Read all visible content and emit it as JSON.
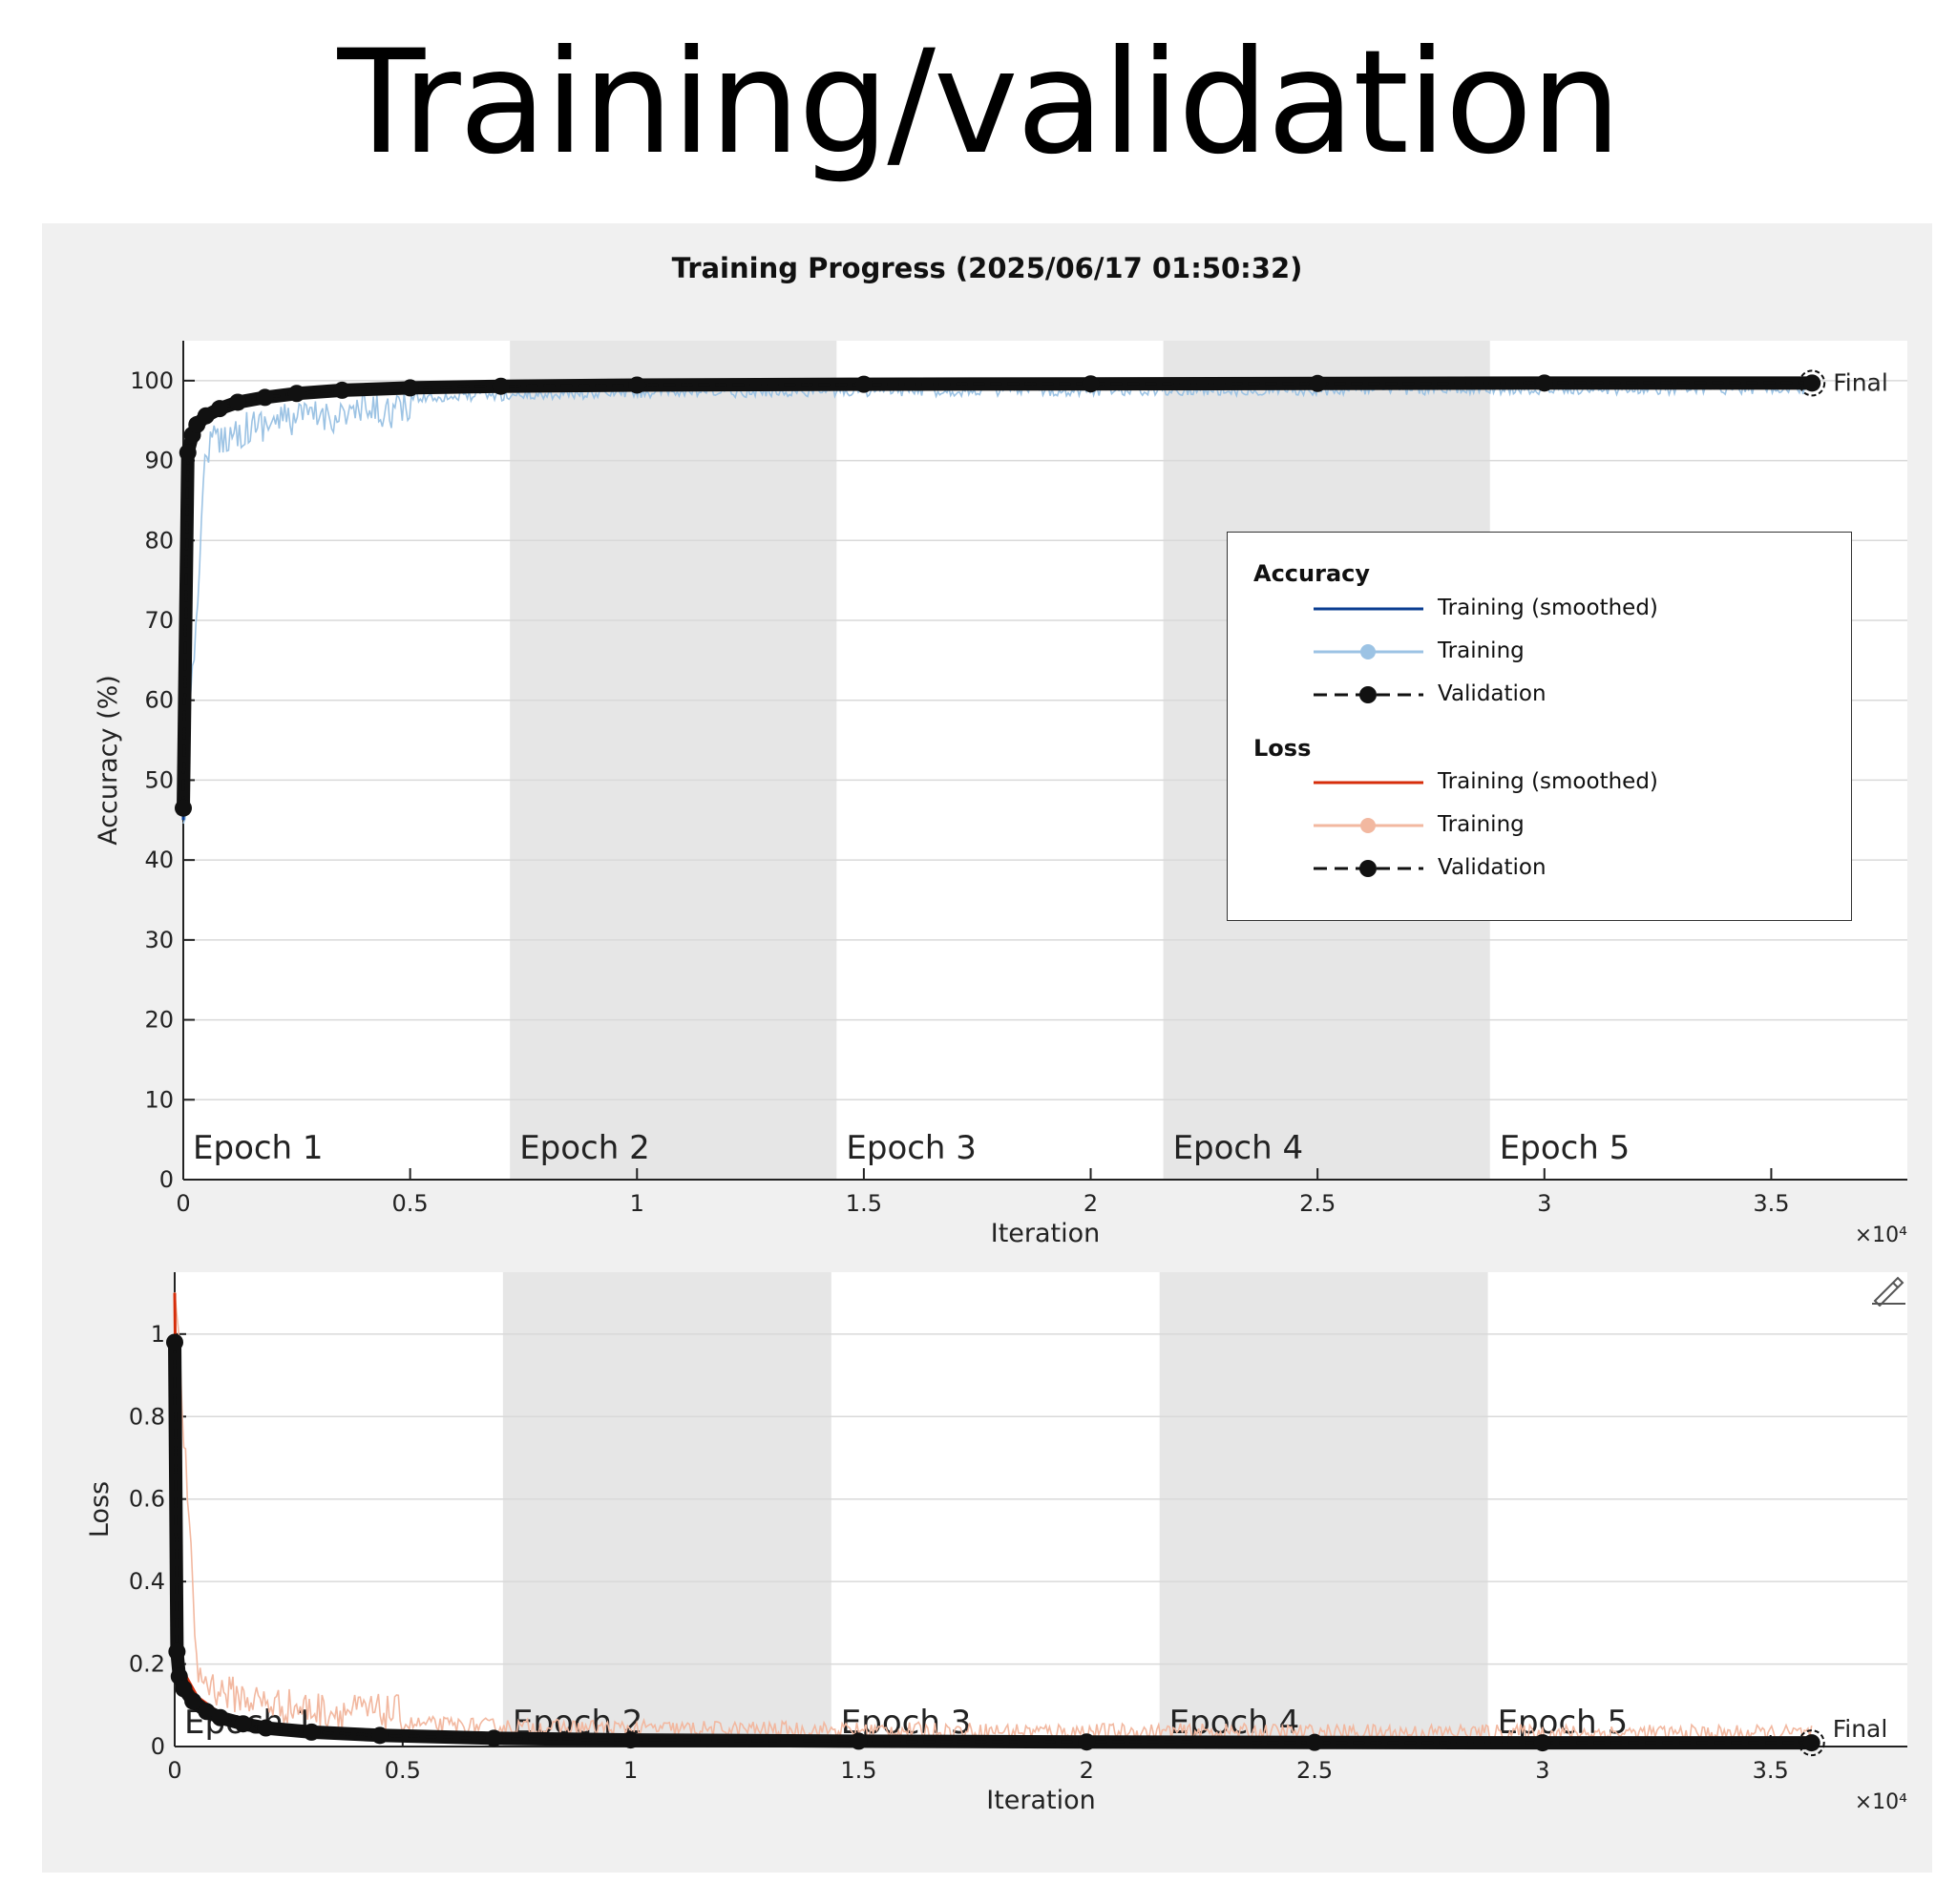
{
  "slide_title": "Training/validation",
  "colors": {
    "accuracy_smoothed": "#0a3d91",
    "accuracy_raw": "#9cc3e4",
    "loss_smoothed": "#d62d0a",
    "loss_raw": "#f2b8a0",
    "validation": "#111111",
    "epoch_shade": "#e6e6e6",
    "panel_bg": "#f0f0f0"
  },
  "chart_data": [
    {
      "type": "line",
      "title": "Training Progress (2025/06/17 01:50:32)",
      "xlabel": "Iteration",
      "ylabel": "Accuracy (%)",
      "x_exponent_label": "×10⁴",
      "xlim": [
        0,
        3.8
      ],
      "ylim": [
        0,
        105
      ],
      "xticks": [
        "0",
        "0.5",
        "1",
        "1.5",
        "2",
        "2.5",
        "3",
        "3.5"
      ],
      "yticks": [
        "0",
        "10",
        "20",
        "30",
        "40",
        "50",
        "60",
        "70",
        "80",
        "90",
        "100"
      ],
      "grid": true,
      "legend_position": "center-right",
      "epochs": [
        {
          "label": "Epoch 1",
          "start": 0,
          "end": 0.72,
          "shaded": false
        },
        {
          "label": "Epoch 2",
          "start": 0.72,
          "end": 1.44,
          "shaded": true
        },
        {
          "label": "Epoch 3",
          "start": 1.44,
          "end": 2.16,
          "shaded": false
        },
        {
          "label": "Epoch 4",
          "start": 2.16,
          "end": 2.88,
          "shaded": true
        },
        {
          "label": "Epoch 5",
          "start": 2.88,
          "end": 3.8,
          "shaded": false
        }
      ],
      "final_label": "Final",
      "series": [
        {
          "name": "Training (smoothed)",
          "x": [
            0,
            0.005,
            0.01,
            0.02,
            0.05,
            0.1,
            0.2,
            0.3,
            0.5,
            0.72,
            1.0,
            1.5,
            2.0,
            2.5,
            3.0,
            3.59
          ],
          "values": [
            45,
            80,
            90,
            93,
            95.5,
            96.8,
            97.8,
            98.4,
            99.0,
            99.3,
            99.5,
            99.6,
            99.7,
            99.7,
            99.75,
            99.8
          ]
        },
        {
          "name": "Training",
          "x": [
            0,
            0.05,
            0.1,
            0.15,
            0.2,
            0.3,
            0.4,
            0.5,
            0.72,
            1.0,
            1.44,
            2.16,
            2.88,
            3.59
          ],
          "values": [
            45,
            94,
            95.5,
            96.5,
            97.2,
            97.8,
            98.3,
            98.6,
            98.9,
            99.2,
            99.4,
            99.5,
            99.6,
            99.7
          ]
        },
        {
          "name": "Validation",
          "x": [
            0,
            0.01,
            0.02,
            0.03,
            0.05,
            0.08,
            0.12,
            0.18,
            0.25,
            0.35,
            0.5,
            0.7,
            1.0,
            1.5,
            2.0,
            2.5,
            3.0,
            3.59
          ],
          "values": [
            46.5,
            91,
            93.2,
            94.5,
            95.6,
            96.5,
            97.3,
            97.9,
            98.4,
            98.8,
            99.1,
            99.3,
            99.45,
            99.55,
            99.6,
            99.65,
            99.7,
            99.7
          ]
        }
      ]
    },
    {
      "type": "line",
      "xlabel": "Iteration",
      "ylabel": "Loss",
      "x_exponent_label": "×10⁴",
      "xlim": [
        0,
        3.8
      ],
      "ylim": [
        0,
        1.15
      ],
      "xticks": [
        "0",
        "0.5",
        "1",
        "1.5",
        "2",
        "2.5",
        "3",
        "3.5"
      ],
      "yticks": [
        "0",
        "0.2",
        "0.4",
        "0.6",
        "0.8",
        "1"
      ],
      "grid": true,
      "epochs": [
        {
          "label": "Epoch 1",
          "start": 0,
          "end": 0.72,
          "shaded": false
        },
        {
          "label": "Epoch 2",
          "start": 0.72,
          "end": 1.44,
          "shaded": true
        },
        {
          "label": "Epoch 3",
          "start": 1.44,
          "end": 2.16,
          "shaded": false
        },
        {
          "label": "Epoch 4",
          "start": 2.16,
          "end": 2.88,
          "shaded": true
        },
        {
          "label": "Epoch 5",
          "start": 2.88,
          "end": 3.8,
          "shaded": false
        }
      ],
      "final_label": "Final",
      "series": [
        {
          "name": "Training (smoothed)",
          "x": [
            0,
            0.005,
            0.01,
            0.02,
            0.05,
            0.1,
            0.2,
            0.3,
            0.5,
            0.72,
            1.0,
            1.5,
            2.0,
            2.5,
            3.0,
            3.59
          ],
          "values": [
            1.1,
            0.6,
            0.25,
            0.18,
            0.12,
            0.08,
            0.05,
            0.035,
            0.025,
            0.02,
            0.016,
            0.012,
            0.01,
            0.009,
            0.008,
            0.007
          ]
        },
        {
          "name": "Training",
          "x": [
            0,
            0.05,
            0.1,
            0.2,
            0.3,
            0.5,
            0.72,
            1.0,
            1.44,
            2.16,
            2.88,
            3.59
          ],
          "values": [
            1.1,
            0.13,
            0.09,
            0.06,
            0.045,
            0.035,
            0.028,
            0.024,
            0.02,
            0.016,
            0.014,
            0.012
          ]
        },
        {
          "name": "Validation",
          "x": [
            0,
            0.005,
            0.01,
            0.02,
            0.04,
            0.07,
            0.1,
            0.15,
            0.2,
            0.3,
            0.45,
            0.7,
            1.0,
            1.5,
            2.0,
            2.5,
            3.0,
            3.59
          ],
          "values": [
            0.98,
            0.23,
            0.17,
            0.14,
            0.11,
            0.085,
            0.07,
            0.055,
            0.045,
            0.035,
            0.027,
            0.02,
            0.016,
            0.013,
            0.011,
            0.01,
            0.009,
            0.009
          ]
        }
      ]
    }
  ],
  "legend": {
    "accuracy_title": "Accuracy",
    "loss_title": "Loss",
    "accuracy_entries": [
      "Training (smoothed)",
      "Training",
      "Validation"
    ],
    "loss_entries": [
      "Training (smoothed)",
      "Training",
      "Validation"
    ]
  },
  "toolbar": {
    "edit_icon": "pen-edit-icon"
  }
}
